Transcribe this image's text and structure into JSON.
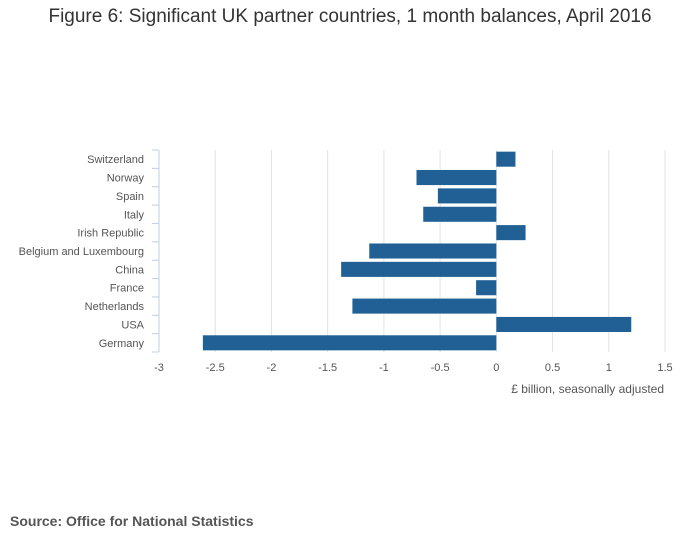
{
  "chart_data": {
    "type": "bar",
    "orientation": "horizontal",
    "title": "Figure 6: Significant UK partner countries, 1 month balances, April 2016",
    "xlabel": "£ billion, seasonally adjusted",
    "ylabel": "",
    "categories": [
      "Switzerland",
      "Norway",
      "Spain",
      "Italy",
      "Irish Republic",
      "Belgium and Luxembourg",
      "China",
      "France",
      "Netherlands",
      "USA",
      "Germany"
    ],
    "values": [
      0.17,
      -0.71,
      -0.52,
      -0.65,
      0.26,
      -1.13,
      -1.38,
      -0.18,
      -1.28,
      1.2,
      -2.61
    ],
    "xlim": [
      -3,
      1.5
    ],
    "xticks": [
      -3,
      -2.5,
      -2,
      -1.5,
      -1,
      -0.5,
      0,
      0.5,
      1,
      1.5
    ],
    "xtick_labels": [
      "-3",
      "-2.5",
      "-2",
      "-1.5",
      "-1",
      "-0.5",
      "0",
      "0.5",
      "1",
      "1.5"
    ],
    "grid": true,
    "bar_color": "#206095"
  },
  "source": "Source: Office for National Statistics"
}
